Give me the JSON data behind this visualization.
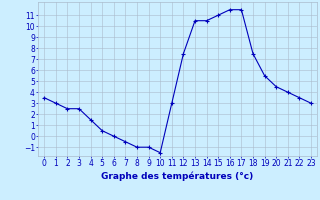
{
  "hours": [
    0,
    1,
    2,
    3,
    4,
    5,
    6,
    7,
    8,
    9,
    10,
    11,
    12,
    13,
    14,
    15,
    16,
    17,
    18,
    19,
    20,
    21,
    22,
    23
  ],
  "temps": [
    3.5,
    3.0,
    2.5,
    2.5,
    1.5,
    0.5,
    0.0,
    -0.5,
    -1.0,
    -1.0,
    -1.5,
    3.0,
    7.5,
    10.5,
    10.5,
    11.0,
    11.5,
    11.5,
    7.5,
    5.5,
    4.5,
    4.0,
    3.5,
    3.0
  ],
  "line_color": "#0000bb",
  "marker": "+",
  "marker_size": 3.5,
  "marker_lw": 0.8,
  "bg_color": "#cceeff",
  "grid_color": "#aabbcc",
  "xlabel": "Graphe des températures (°c)",
  "xlabel_color": "#0000bb",
  "xlabel_fontsize": 6.5,
  "tick_color": "#0000bb",
  "tick_fontsize": 5.5,
  "ylim": [
    -1.8,
    12.2
  ],
  "xlim": [
    -0.5,
    23.5
  ],
  "yticks": [
    -1,
    0,
    1,
    2,
    3,
    4,
    5,
    6,
    7,
    8,
    9,
    10,
    11
  ],
  "xticks": [
    0,
    1,
    2,
    3,
    4,
    5,
    6,
    7,
    8,
    9,
    10,
    11,
    12,
    13,
    14,
    15,
    16,
    17,
    18,
    19,
    20,
    21,
    22,
    23
  ]
}
